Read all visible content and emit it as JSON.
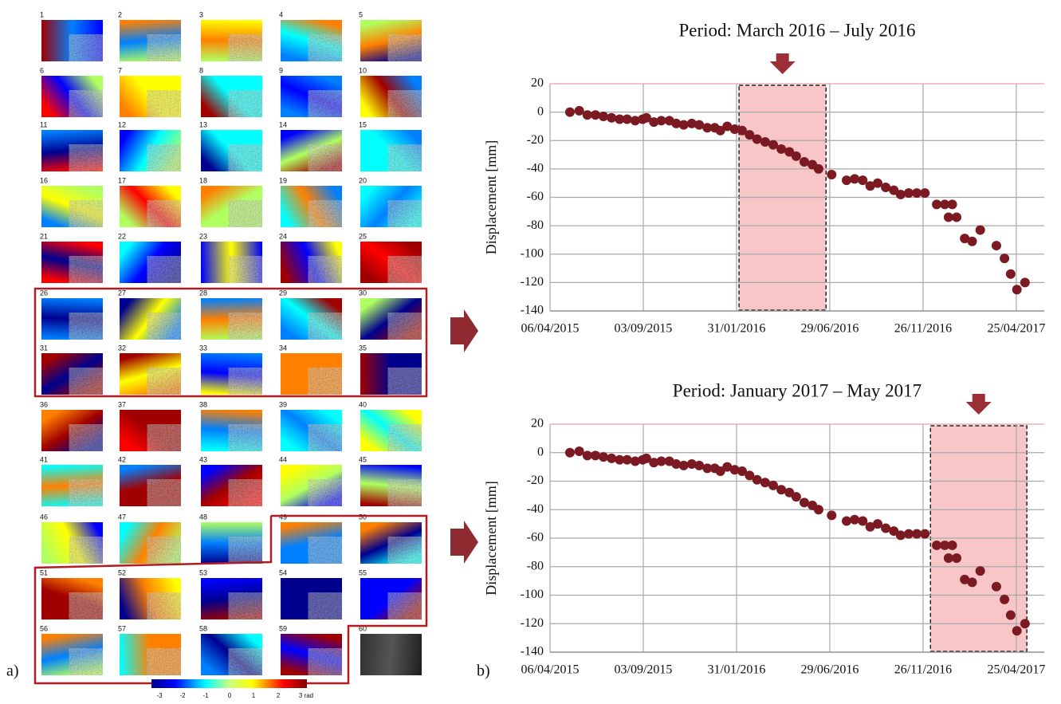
{
  "figure": {
    "panel_a": "a)",
    "panel_b": "b)",
    "tiles": [
      "1",
      "2",
      "3",
      "4",
      "5",
      "6",
      "7",
      "8",
      "9",
      "10",
      "11",
      "12",
      "13",
      "14",
      "15",
      "16",
      "17",
      "18",
      "19",
      "20",
      "21",
      "22",
      "23",
      "24",
      "25",
      "26",
      "27",
      "28",
      "29",
      "30",
      "31",
      "32",
      "33",
      "34",
      "35",
      "36",
      "37",
      "38",
      "39",
      "40",
      "41",
      "42",
      "43",
      "44",
      "45",
      "46",
      "47",
      "48",
      "49",
      "50",
      "51",
      "52",
      "53",
      "54",
      "55",
      "56",
      "57",
      "58",
      "59",
      "60"
    ],
    "colorbar_labels": [
      "-3",
      "-2",
      "-1",
      "0",
      "1",
      "2",
      "3 rad"
    ]
  },
  "chart_data": [
    {
      "type": "scatter",
      "title": "Period: March 2016 – July 2016",
      "y_label": "Displacement [mm]",
      "color": "#7b1a22",
      "highlight": [
        "2016-02-04",
        "2016-06-23"
      ],
      "highlight_color": "#f8c6c6",
      "x": [
        "2015-05-08",
        "2015-05-23",
        "2015-06-05",
        "2015-06-18",
        "2015-07-01",
        "2015-07-14",
        "2015-07-27",
        "2015-08-08",
        "2015-08-21",
        "2015-09-02",
        "2015-09-08",
        "2015-09-20",
        "2015-10-02",
        "2015-10-15",
        "2015-10-26",
        "2015-11-07",
        "2015-11-20",
        "2015-12-02",
        "2015-12-15",
        "2015-12-27",
        "2016-01-05",
        "2016-01-16",
        "2016-01-28",
        "2016-02-09",
        "2016-02-21",
        "2016-03-04",
        "2016-03-17",
        "2016-03-30",
        "2016-04-12",
        "2016-04-25",
        "2016-05-06",
        "2016-05-19",
        "2016-06-01",
        "2016-06-11",
        "2016-07-02",
        "2016-07-26",
        "2016-08-08",
        "2016-08-21",
        "2016-09-02",
        "2016-09-14",
        "2016-09-27",
        "2016-10-10",
        "2016-10-21",
        "2016-11-03",
        "2016-11-16",
        "2016-11-29",
        "2016-12-18",
        "2016-12-31",
        "2017-01-06",
        "2017-01-12",
        "2017-01-19",
        "2017-02-01",
        "2017-02-13",
        "2017-02-26",
        "2017-03-24",
        "2017-04-06",
        "2017-04-16",
        "2017-04-26",
        "2017-05-09"
      ],
      "values": [
        0,
        1,
        -2,
        -2,
        -3,
        -4,
        -5,
        -5,
        -6,
        -5,
        -4,
        -7,
        -6,
        -6,
        -8,
        -9,
        -8,
        -9,
        -11,
        -11,
        -13,
        -10,
        -12,
        -13,
        -16,
        -19,
        -21,
        -23,
        -26,
        -28,
        -31,
        -35,
        -37,
        -40,
        -44,
        -48,
        -47,
        -48,
        -52,
        -50,
        -53,
        -55,
        -58,
        -57,
        -57,
        -57,
        -65,
        -65,
        -74,
        -65,
        -74,
        -89,
        -91,
        -83,
        -94,
        -103,
        -114,
        -125,
        -120
      ],
      "xlim": [
        "2015-04-06",
        "2017-06-09"
      ],
      "xticks": [
        {
          "value": "2015-04-06",
          "label": "06/04/2015"
        },
        {
          "value": "2015-09-03",
          "label": "03/09/2015"
        },
        {
          "value": "2016-01-31",
          "label": "31/01/2016"
        },
        {
          "value": "2016-06-29",
          "label": "29/06/2016"
        },
        {
          "value": "2016-11-26",
          "label": "26/11/2016"
        },
        {
          "value": "2017-04-25",
          "label": "25/04/2017"
        }
      ],
      "ylim": [
        -140,
        20
      ],
      "yticks": [
        -140,
        -120,
        -100,
        -80,
        -60,
        -40,
        -20,
        0,
        20
      ],
      "grid": true
    },
    {
      "type": "scatter",
      "title": "Period: January 2017 – May 2017",
      "y_label": "Displacement [mm]",
      "color": "#7b1a22",
      "highlight": [
        "2016-12-08",
        "2017-05-12"
      ],
      "highlight_color": "#f8c6c6",
      "x": [
        "2015-05-08",
        "2015-05-23",
        "2015-06-05",
        "2015-06-18",
        "2015-07-01",
        "2015-07-14",
        "2015-07-27",
        "2015-08-08",
        "2015-08-21",
        "2015-09-02",
        "2015-09-08",
        "2015-09-20",
        "2015-10-02",
        "2015-10-15",
        "2015-10-26",
        "2015-11-07",
        "2015-11-20",
        "2015-12-02",
        "2015-12-15",
        "2015-12-27",
        "2016-01-05",
        "2016-01-16",
        "2016-01-28",
        "2016-02-09",
        "2016-02-21",
        "2016-03-04",
        "2016-03-17",
        "2016-03-30",
        "2016-04-12",
        "2016-04-25",
        "2016-05-06",
        "2016-05-19",
        "2016-06-01",
        "2016-06-11",
        "2016-07-02",
        "2016-07-26",
        "2016-08-08",
        "2016-08-21",
        "2016-09-02",
        "2016-09-14",
        "2016-09-27",
        "2016-10-10",
        "2016-10-21",
        "2016-11-03",
        "2016-11-16",
        "2016-11-29",
        "2016-12-18",
        "2016-12-31",
        "2017-01-06",
        "2017-01-12",
        "2017-01-19",
        "2017-02-01",
        "2017-02-13",
        "2017-02-26",
        "2017-03-24",
        "2017-04-06",
        "2017-04-16",
        "2017-04-26",
        "2017-05-09"
      ],
      "values": [
        0,
        1,
        -2,
        -2,
        -3,
        -4,
        -5,
        -5,
        -6,
        -5,
        -4,
        -7,
        -6,
        -6,
        -8,
        -9,
        -8,
        -9,
        -11,
        -11,
        -13,
        -10,
        -12,
        -13,
        -16,
        -19,
        -21,
        -23,
        -26,
        -28,
        -31,
        -35,
        -37,
        -40,
        -44,
        -48,
        -47,
        -48,
        -52,
        -50,
        -53,
        -55,
        -58,
        -57,
        -57,
        -57,
        -65,
        -65,
        -74,
        -65,
        -74,
        -89,
        -91,
        -83,
        -94,
        -103,
        -114,
        -125,
        -120
      ],
      "xlim": [
        "2015-04-06",
        "2017-06-09"
      ],
      "xticks": [
        {
          "value": "2015-04-06",
          "label": "06/04/2015"
        },
        {
          "value": "2015-09-03",
          "label": "03/09/2015"
        },
        {
          "value": "2016-01-31",
          "label": "31/01/2016"
        },
        {
          "value": "2016-06-29",
          "label": "29/06/2016"
        },
        {
          "value": "2016-11-26",
          "label": "26/11/2016"
        },
        {
          "value": "2017-04-25",
          "label": "25/04/2017"
        }
      ],
      "ylim": [
        -140,
        20
      ],
      "yticks": [
        -140,
        -120,
        -100,
        -80,
        -60,
        -40,
        -20,
        0,
        20
      ],
      "grid": true
    }
  ]
}
